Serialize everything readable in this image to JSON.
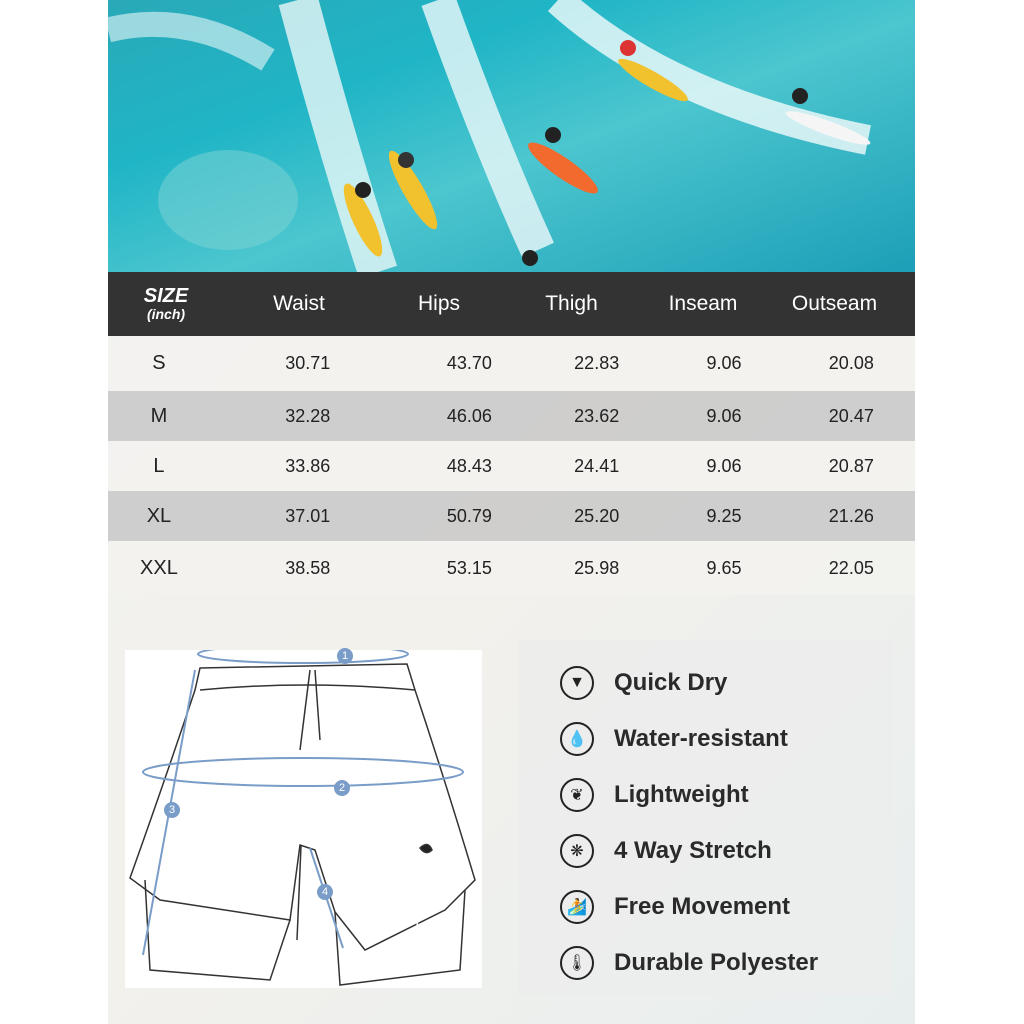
{
  "size_table": {
    "header": {
      "size": "SIZE",
      "unit": "(inch)",
      "columns": [
        "Waist",
        "Hips",
        "Thigh",
        "Inseam",
        "Outseam"
      ]
    },
    "rows": [
      {
        "size": "S",
        "values": [
          "30.71",
          "43.70",
          "22.83",
          "9.06",
          "20.08"
        ]
      },
      {
        "size": "M",
        "values": [
          "32.28",
          "46.06",
          "23.62",
          "9.06",
          "20.47"
        ]
      },
      {
        "size": "L",
        "values": [
          "33.86",
          "48.43",
          "24.41",
          "9.06",
          "20.87"
        ]
      },
      {
        "size": "XL",
        "values": [
          "37.01",
          "50.79",
          "25.20",
          "9.25",
          "21.26"
        ]
      },
      {
        "size": "XXL",
        "values": [
          "38.58",
          "53.15",
          "25.98",
          "9.65",
          "22.05"
        ]
      }
    ]
  },
  "diagram": {
    "markers": [
      "1",
      "2",
      "3",
      "4"
    ],
    "accent_color": "#7a9cc8"
  },
  "features": [
    {
      "icon": "quick-dry-icon",
      "label": "Quick Dry"
    },
    {
      "icon": "water-drops-icon",
      "label": "Water-resistant"
    },
    {
      "icon": "leaf-icon",
      "label": "Lightweight"
    },
    {
      "icon": "stretch-fabric-icon",
      "label": "4 Way Stretch"
    },
    {
      "icon": "surfer-icon",
      "label": "Free Movement"
    },
    {
      "icon": "thermometer-icon",
      "label": "Durable Polyester"
    }
  ],
  "colors": {
    "header_bg": "#333333",
    "stripe": "#c8c8c8",
    "ocean": "#1fb5c6"
  }
}
